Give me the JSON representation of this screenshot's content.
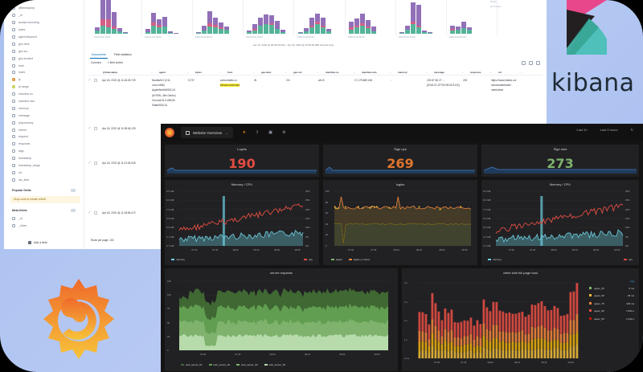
{
  "kibana": {
    "logo_text": "kibana",
    "sidebar": {
      "fields": [
        {
          "name": "@timestamp",
          "type": "date"
        },
        {
          "name": "_id",
          "type": "string"
        },
        {
          "name": "accept-encoding",
          "type": "string"
        },
        {
          "name": "bytes",
          "type": "number"
        },
        {
          "name": "agent.keyword",
          "type": "keyword"
        },
        {
          "name": "geo.dest",
          "type": "string"
        },
        {
          "name": "geo.src",
          "type": "string"
        },
        {
          "name": "geo.srcdest",
          "type": "string"
        },
        {
          "name": "host",
          "type": "string"
        },
        {
          "name": "index",
          "type": "string"
        },
        {
          "name": "ip",
          "type": "geo"
        },
        {
          "name": "ip.range",
          "type": "str"
        },
        {
          "name": "machine.os",
          "type": "string"
        },
        {
          "name": "machine.ram",
          "type": "string"
        },
        {
          "name": "memory",
          "type": "string"
        },
        {
          "name": "message",
          "type": "string"
        },
        {
          "name": "phpmemory",
          "type": "string"
        },
        {
          "name": "referer",
          "type": "string"
        },
        {
          "name": "request",
          "type": "string"
        },
        {
          "name": "response",
          "type": "string"
        },
        {
          "name": "tags",
          "type": "string"
        },
        {
          "name": "timestamp",
          "type": "string"
        },
        {
          "name": "timestamp_range",
          "type": "string"
        },
        {
          "name": "url",
          "type": "string"
        },
        {
          "name": "utc_time",
          "type": "string"
        }
      ],
      "popular_title": "Popular fields",
      "popular_drop_hint": "Drop zone to create a field",
      "meta_title": "Meta fields",
      "meta_fields": [
        "_id",
        "_index"
      ],
      "add_field_label": "Add a field"
    },
    "histogram": {
      "axis_labels": [
        "2022-04-01 00:00",
        "2022-04-02 00:00",
        "2022-04-03 00:00",
        "2022-04-04 00:00",
        "2022-04-05 00:00",
        "2022-04-06 00:00",
        "2022-04-07 00:00",
        "2022-04-08 00:00"
      ],
      "range_text": "Apr 13, 2022 @ 00:00:00.000 – Apr 20, 2022 @ 23:59:59.999   Interval: Auto",
      "side_stats": [
        "20 hits",
        "per 3 hours"
      ]
    },
    "tabs": [
      {
        "label": "Documents",
        "active": true
      },
      {
        "label": "Field statistics",
        "active": false
      }
    ],
    "toolbar": {
      "columns_label": "Columns",
      "sort_label": "1 field sorted"
    },
    "table": {
      "columns": [
        "@timestamp",
        "agent",
        "bytes",
        "host",
        "geo.dest",
        "geo.src",
        "machine.os",
        "machine.ram",
        "memory",
        "message",
        "response",
        "url"
      ],
      "rows": [
        {
          "timestamp": "Apr 18, 2022 @ 11:45:28.729",
          "agent": "Mozilla/5.0 (X11;\nLinux i686)\nAppleWebKit/534.24\n(KHTML, like Gecko)\nChrome/11.0.696.50\nSafari/534.24",
          "bytes": "5,737",
          "host": "www.elastic.co",
          "host_highlight": "kibana-download",
          "geo_dest": "IN",
          "geo_src": "CN",
          "machine_os": "win 8",
          "machine_ram": "17,179,869,184",
          "memory": "-",
          "message": "223.87.60.27 - -\n[2018-07-22T00:39:02.912Z]",
          "response": "200",
          "url": "https://www.elastic.co/\ndownloads/beats/\nmetricbeat"
        },
        {
          "timestamp": "Apr 18, 2022 @ 11:38:46.125"
        },
        {
          "timestamp": "Apr 18, 2022 @ 11:31:06.326"
        },
        {
          "timestamp": "Apr 18, 2022 @ 11:18:56.472"
        }
      ],
      "rows_per_page": "Rows per page: 100"
    }
  },
  "grafana": {
    "nav": {
      "dashboard_title": "Website Overview",
      "right_items": [
        "Last 1h",
        "Last 3 hours",
        "refresh"
      ]
    },
    "stats": [
      {
        "title": "Logins",
        "value": "190",
        "color": "#e24d42"
      },
      {
        "title": "Sign ups",
        "value": "269",
        "color": "#eab839"
      },
      {
        "title": "Sign outs",
        "value": "273",
        "color": "#7eb26d"
      }
    ],
    "graphs": [
      {
        "title": "Memory / CPU",
        "legend": [
          "memory",
          "cpu"
        ]
      },
      {
        "title": "logins",
        "legend": [
          "logins",
          "logins (-1 hour)"
        ]
      },
      {
        "title": "Memory / CPU",
        "legend": [
          "memory",
          "cpu"
        ]
      }
    ],
    "server_requests": {
      "title": "server requests",
      "legend": [
        "web_server_01",
        "web_server_02",
        "web_server_03",
        "web_server_04"
      ],
      "y_labels": [
        "125",
        "100",
        "75",
        "50",
        "25",
        "0"
      ],
      "x_labels": [
        "07:30",
        "07:45",
        "08:00",
        "08:15",
        "08:30",
        "08:45"
      ]
    },
    "page_load": {
      "title": "client side full page load",
      "avg_header": "avg",
      "legend": [
        {
          "name": "upper_25",
          "value": "5 ms",
          "color": "#7eb26d"
        },
        {
          "name": "upper_50",
          "value": "45 ms",
          "color": "#eab839"
        },
        {
          "name": "upper_75",
          "value": "423 ms",
          "color": "#ef843c"
        },
        {
          "name": "upper_90",
          "value": "1.593 s",
          "color": "#e24d42"
        },
        {
          "name": "upper_95",
          "value": "2.342 s",
          "color": "#bf1b00"
        }
      ],
      "y_labels": [
        "4 s",
        "3 s",
        "2 s",
        "1 s",
        "0 ms"
      ],
      "x_labels": [
        "07:30",
        "07:45",
        "08:00",
        "08:15",
        "08:30",
        "08:45"
      ]
    },
    "memory_cpu_axes": {
      "y_left": [
        "9.5 GiB",
        "8.6 GiB",
        "7.5 GiB",
        "6.5 GiB",
        "5.6 GiB",
        "4.7 GiB",
        "3.7 GiB"
      ],
      "y_right": [
        "30%",
        "25%",
        "20%",
        "15%",
        "10%",
        "5%",
        "0%"
      ],
      "x": [
        "07:30",
        "07:45",
        "08:00",
        "08:15",
        "08:30",
        "08:45"
      ]
    },
    "logins_axes": {
      "y": [
        "100",
        "80",
        "60",
        "40",
        "20",
        "0"
      ],
      "x": [
        "07:30",
        "07:45",
        "08:00",
        "08:15",
        "08:30",
        "08:45"
      ]
    }
  }
}
